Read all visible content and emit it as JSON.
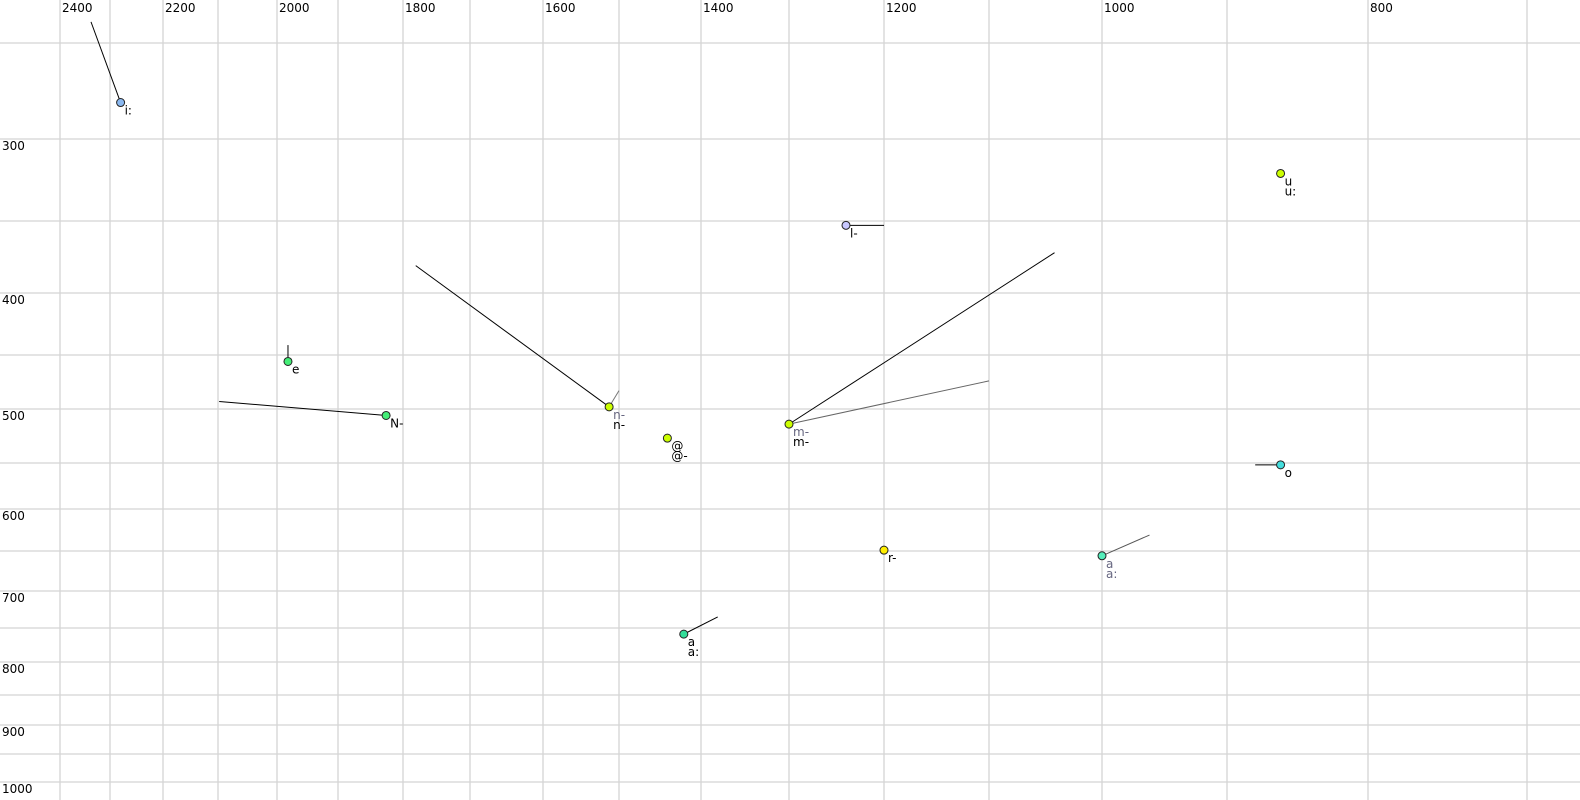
{
  "chart_data": {
    "type": "scatter",
    "title": "",
    "xlabel": "",
    "ylabel": "",
    "x_reversed": true,
    "y_reversed": true,
    "x_scale": "auditory (bark-like)",
    "grid": true,
    "x_ticks": [
      2400,
      2200,
      2000,
      1800,
      1600,
      1400,
      1200,
      1000,
      800
    ],
    "y_ticks": [
      300,
      400,
      500,
      600,
      700,
      800,
      900,
      1000
    ],
    "points": [
      {
        "labels": [
          "i:"
        ],
        "x": 2280,
        "y": 281,
        "color": "#8ab8f0",
        "label_color": "#000000",
        "trails": [
          {
            "x": 2338,
            "y": 239,
            "color": "#000000"
          }
        ]
      },
      {
        "labels": [
          "u",
          "u:"
        ],
        "x": 862,
        "y": 321,
        "color": "#ccff00",
        "label_color": "#000000",
        "trails": []
      },
      {
        "labels": [
          "l-"
        ],
        "x": 1240,
        "y": 353,
        "color": "#c8c8ff",
        "label_color": "#000000",
        "trails": [
          {
            "x": 1200,
            "y": 353,
            "color": "#000000"
          }
        ]
      },
      {
        "labels": [
          "e"
        ],
        "x": 1982,
        "y": 456,
        "color": "#44ee77",
        "label_color": "#000000",
        "trails": [
          {
            "x": 1982,
            "y": 442,
            "color": "#000000"
          }
        ]
      },
      {
        "labels": [
          "N-"
        ],
        "x": 1826,
        "y": 506,
        "color": "#44ee77",
        "label_color": "#000000",
        "trails": [
          {
            "x": 2098,
            "y": 493,
            "color": "#000000"
          }
        ]
      },
      {
        "labels": [
          "n-",
          "n-"
        ],
        "x": 1513,
        "y": 498,
        "color": "#ccff00",
        "label_color": "#000000",
        "sub_label_color": "#666680",
        "trails": [
          {
            "x": 1781,
            "y": 381,
            "color": "#000000"
          },
          {
            "x": 1500,
            "y": 483,
            "color": "#777777"
          }
        ]
      },
      {
        "labels": [
          "@",
          "@-"
        ],
        "x": 1441,
        "y": 527,
        "color": "#ccff00",
        "label_color": "#000000",
        "trails": []
      },
      {
        "labels": [
          "m-",
          "m-"
        ],
        "x": 1300,
        "y": 514,
        "color": "#ccff00",
        "label_color": "#000000",
        "sub_label_color": "#666680",
        "trails": [
          {
            "x": 1042,
            "y": 372,
            "color": "#000000"
          },
          {
            "x": 1100,
            "y": 474,
            "color": "#666666"
          }
        ]
      },
      {
        "labels": [
          "o"
        ],
        "x": 862,
        "y": 552,
        "color": "#44dddd",
        "label_color": "#000000",
        "trails": [
          {
            "x": 880,
            "y": 552,
            "color": "#000000"
          }
        ]
      },
      {
        "labels": [
          "r-"
        ],
        "x": 1200,
        "y": 649,
        "color": "#ffee00",
        "label_color": "#000000",
        "trails": []
      },
      {
        "labels": [
          "a",
          "a:"
        ],
        "x": 1000,
        "y": 656,
        "color": "#55eebb",
        "label_color": "#666680",
        "trails": [
          {
            "x": 962,
            "y": 631,
            "color": "#555555"
          }
        ]
      },
      {
        "labels": [
          "a",
          "a:"
        ],
        "x": 1421,
        "y": 759,
        "color": "#33dd99",
        "label_color": "#000000",
        "trails": [
          {
            "x": 1381,
            "y": 735,
            "color": "#000000"
          }
        ]
      }
    ]
  }
}
